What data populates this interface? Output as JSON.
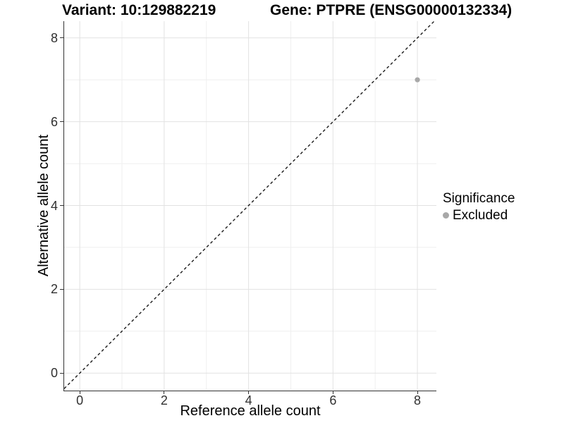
{
  "chart_data": {
    "type": "scatter",
    "title_left": "Variant: 10:129882219",
    "title_right": "Gene: PTPRE (ENSG00000132334)",
    "xlabel": "Reference allele count",
    "ylabel": "Alternative allele count",
    "xlim": [
      -0.37,
      8.45
    ],
    "ylim": [
      -0.4,
      8.4
    ],
    "x_ticks": [
      0,
      2,
      4,
      6,
      8
    ],
    "y_ticks": [
      0,
      2,
      4,
      6,
      8
    ],
    "x_minor_ticks": [
      1,
      3,
      5,
      7
    ],
    "y_minor_ticks": [
      1,
      3,
      5,
      7
    ],
    "grid": true,
    "points": [
      {
        "x": 8,
        "y": 7,
        "series": "Excluded"
      }
    ],
    "reference_line": {
      "slope": 1,
      "intercept": 0,
      "style": "dashed",
      "color": "#1a1a1a"
    },
    "legend": {
      "title": "Significance",
      "position": "right",
      "items": [
        {
          "label": "Excluded",
          "color": "#a8a8a8"
        }
      ]
    },
    "colors": {
      "grid_major": "#e2e2e2",
      "grid_minor": "#efefef",
      "axis": "#333333",
      "point": "#a8a8a8",
      "background": "#ffffff"
    }
  }
}
